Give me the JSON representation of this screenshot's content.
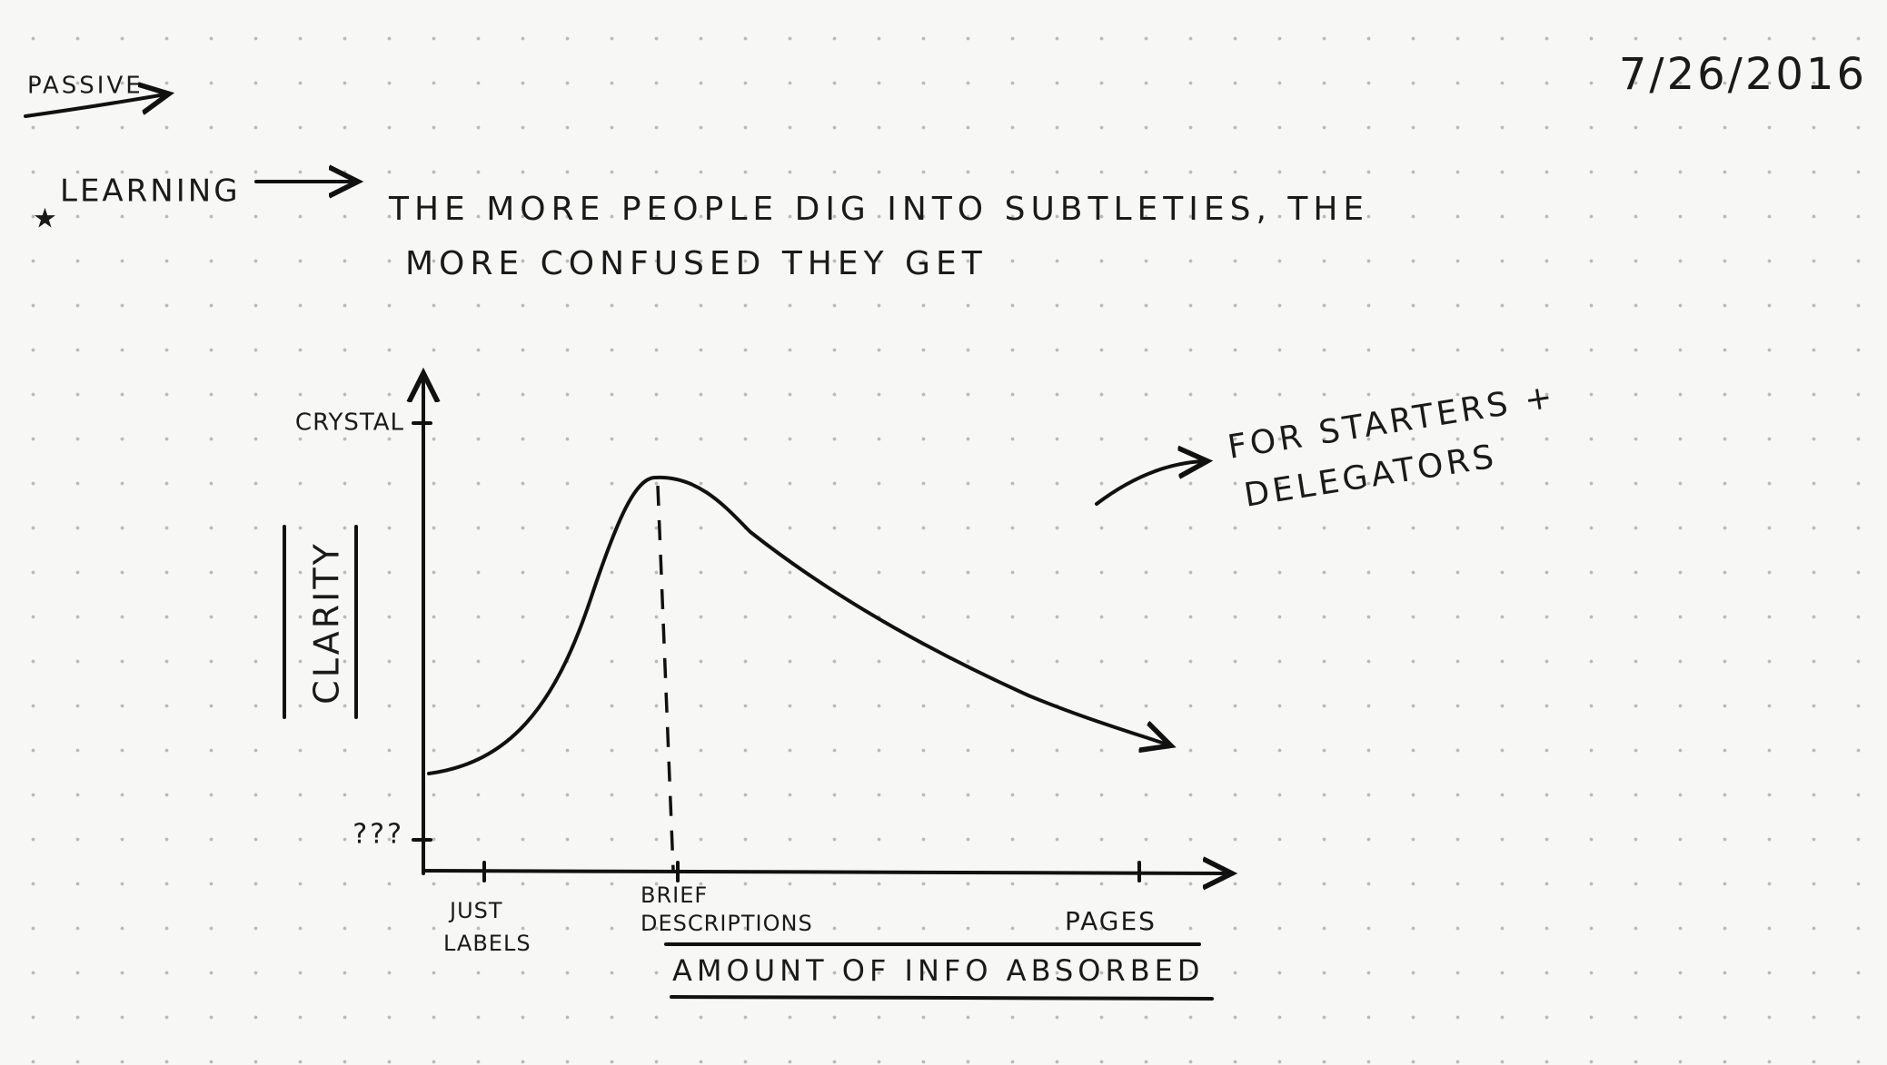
{
  "header": {
    "tag": "PASSIVE",
    "date": "7/26/2016"
  },
  "note": {
    "topic": "LEARNING",
    "lines": [
      "THE MORE PEOPLE DIG INTO SUBTLETIES, THE",
      "MORE CONFUSED THEY GET"
    ]
  },
  "sketch": {
    "y_axis": {
      "label": "CLARITY",
      "top": "CRYSTAL",
      "bottom": "???"
    },
    "x_axis": {
      "label": "AMOUNT OF INFO ABSORBED",
      "ticks": [
        [
          "JUST",
          "LABELS"
        ],
        [
          "BRIEF",
          "DESCRIPTIONS"
        ],
        [
          "PAGES"
        ]
      ]
    },
    "annotation": [
      "FOR STARTERS +",
      "DELEGATORS"
    ]
  }
}
